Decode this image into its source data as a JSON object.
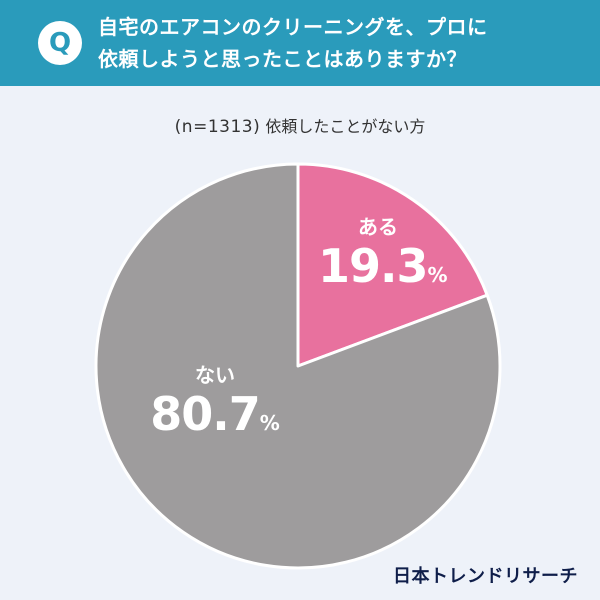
{
  "header": {
    "badge": "Q",
    "question_line1": "自宅のエアコンのクリーニングを、プロに",
    "question_line2": "依頼しようと思ったことはありますか？"
  },
  "sample": {
    "n_text": "(n=1313)",
    "subtitle": "依頼したことがない方"
  },
  "chart_data": {
    "type": "pie",
    "title": "自宅のエアコンのクリーニングを、プロに依頼しようと思ったことはありますか？",
    "subtitle": "(n=1313) 依頼したことがない方",
    "unit": "%",
    "slices": [
      {
        "label": "ある",
        "value": 19.3,
        "color": "#e8719e"
      },
      {
        "label": "ない",
        "value": 80.7,
        "color": "#9e9c9d"
      }
    ],
    "start_angle": "12 o'clock",
    "direction": "clockwise"
  },
  "labels": {
    "yes_name": "ある",
    "yes_value": "19.3",
    "percent_sign": "%",
    "no_name": "ない",
    "no_value": "80.7"
  },
  "logo": "日本トレンドリサーチ"
}
